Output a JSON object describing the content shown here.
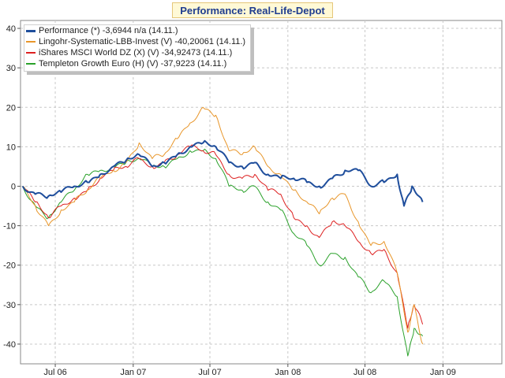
{
  "title": "Performance: Real-Life-Depot",
  "chart_data": {
    "type": "line",
    "title": "Performance: Real-Life-Depot",
    "ylim": [
      -45,
      42
    ],
    "yticks": [
      40,
      30,
      20,
      10,
      0,
      -10,
      -20,
      -30,
      -40
    ],
    "xlim": [
      "2006-04-10",
      "2009-05-20"
    ],
    "xticks": [
      {
        "date": "2006-07-01",
        "label": "Jul 06"
      },
      {
        "date": "2007-01-01",
        "label": "Jan 07"
      },
      {
        "date": "2007-07-01",
        "label": "Jul 07"
      },
      {
        "date": "2008-01-01",
        "label": "Jan 08"
      },
      {
        "date": "2008-07-01",
        "label": "Jul 08"
      },
      {
        "date": "2009-01-01",
        "label": "Jan 09"
      }
    ],
    "grid": true,
    "legend_position": "top-left",
    "series": [
      {
        "name": "Performance (*) -3,6944 n/a (14.11.)",
        "color": "#1f4e9c",
        "width": 2,
        "points": [
          [
            "2006-04-15",
            0
          ],
          [
            "2006-05-15",
            -2
          ],
          [
            "2006-06-15",
            -2.5
          ],
          [
            "2006-07-15",
            -1.5
          ],
          [
            "2006-08-15",
            0
          ],
          [
            "2006-09-15",
            1
          ],
          [
            "2006-10-15",
            3
          ],
          [
            "2006-11-15",
            5
          ],
          [
            "2006-12-15",
            6.5
          ],
          [
            "2007-01-15",
            8
          ],
          [
            "2007-02-15",
            5
          ],
          [
            "2007-03-15",
            6
          ],
          [
            "2007-04-15",
            8
          ],
          [
            "2007-05-15",
            10
          ],
          [
            "2007-06-15",
            11
          ],
          [
            "2007-07-15",
            10
          ],
          [
            "2007-08-15",
            6
          ],
          [
            "2007-09-15",
            5
          ],
          [
            "2007-10-15",
            6
          ],
          [
            "2007-11-15",
            3
          ],
          [
            "2007-12-15",
            2
          ],
          [
            "2008-01-15",
            2
          ],
          [
            "2008-02-15",
            1
          ],
          [
            "2008-03-15",
            0
          ],
          [
            "2008-04-15",
            2
          ],
          [
            "2008-05-15",
            4
          ],
          [
            "2008-06-15",
            4
          ],
          [
            "2008-07-15",
            0
          ],
          [
            "2008-08-15",
            1
          ],
          [
            "2008-09-15",
            3
          ],
          [
            "2008-10-01",
            -5
          ],
          [
            "2008-10-20",
            0
          ],
          [
            "2008-11-14",
            -4
          ]
        ]
      },
      {
        "name": "Lingohr-Systematic-LBB-Invest (V) -40,20061 (14.11.)",
        "color": "#e8962a",
        "width": 1,
        "points": [
          [
            "2006-04-15",
            0
          ],
          [
            "2006-05-15",
            -5
          ],
          [
            "2006-06-15",
            -10
          ],
          [
            "2006-07-15",
            -6
          ],
          [
            "2006-08-15",
            -4
          ],
          [
            "2006-09-15",
            -1
          ],
          [
            "2006-10-15",
            2
          ],
          [
            "2006-11-15",
            4
          ],
          [
            "2006-12-15",
            6
          ],
          [
            "2007-01-15",
            11
          ],
          [
            "2007-02-15",
            7
          ],
          [
            "2007-03-15",
            8
          ],
          [
            "2007-04-15",
            12
          ],
          [
            "2007-05-15",
            16
          ],
          [
            "2007-06-15",
            20
          ],
          [
            "2007-07-15",
            18
          ],
          [
            "2007-08-15",
            9
          ],
          [
            "2007-09-15",
            8
          ],
          [
            "2007-10-15",
            10
          ],
          [
            "2007-11-15",
            5
          ],
          [
            "2007-12-15",
            3
          ],
          [
            "2008-01-15",
            -1
          ],
          [
            "2008-02-15",
            -4
          ],
          [
            "2008-03-15",
            -7
          ],
          [
            "2008-04-15",
            -3
          ],
          [
            "2008-05-15",
            -2
          ],
          [
            "2008-06-15",
            -9
          ],
          [
            "2008-07-15",
            -15
          ],
          [
            "2008-08-15",
            -14
          ],
          [
            "2008-09-15",
            -22
          ],
          [
            "2008-10-10",
            -37
          ],
          [
            "2008-10-25",
            -30
          ],
          [
            "2008-11-14",
            -40
          ]
        ]
      },
      {
        "name": "iShares MSCI World DZ (X) (V) -34,92473 (14.11.)",
        "color": "#dd2020",
        "width": 1,
        "points": [
          [
            "2006-04-15",
            0
          ],
          [
            "2006-05-15",
            -4
          ],
          [
            "2006-06-15",
            -8
          ],
          [
            "2006-07-15",
            -5
          ],
          [
            "2006-08-15",
            -3
          ],
          [
            "2006-09-15",
            -1
          ],
          [
            "2006-10-15",
            2
          ],
          [
            "2006-11-15",
            4
          ],
          [
            "2006-12-15",
            5
          ],
          [
            "2007-01-15",
            7
          ],
          [
            "2007-02-15",
            5
          ],
          [
            "2007-03-15",
            6
          ],
          [
            "2007-04-15",
            8
          ],
          [
            "2007-05-15",
            10
          ],
          [
            "2007-06-15",
            9
          ],
          [
            "2007-07-15",
            8
          ],
          [
            "2007-08-15",
            3
          ],
          [
            "2007-09-15",
            2
          ],
          [
            "2007-10-15",
            3
          ],
          [
            "2007-11-15",
            -1
          ],
          [
            "2007-12-15",
            -2
          ],
          [
            "2008-01-15",
            -8
          ],
          [
            "2008-02-15",
            -10
          ],
          [
            "2008-03-15",
            -13
          ],
          [
            "2008-04-15",
            -9
          ],
          [
            "2008-05-15",
            -10
          ],
          [
            "2008-06-15",
            -14
          ],
          [
            "2008-07-15",
            -17
          ],
          [
            "2008-08-15",
            -16
          ],
          [
            "2008-09-15",
            -22
          ],
          [
            "2008-10-10",
            -36
          ],
          [
            "2008-10-25",
            -30
          ],
          [
            "2008-11-14",
            -35
          ]
        ]
      },
      {
        "name": "Templeton Growth Euro (H) (V) -37,9223 (14.11.)",
        "color": "#2aa12a",
        "width": 1,
        "points": [
          [
            "2006-04-15",
            0
          ],
          [
            "2006-05-15",
            -5
          ],
          [
            "2006-06-15",
            -8
          ],
          [
            "2006-07-15",
            -4
          ],
          [
            "2006-08-15",
            -1
          ],
          [
            "2006-09-15",
            3
          ],
          [
            "2006-10-15",
            4
          ],
          [
            "2006-11-15",
            5
          ],
          [
            "2006-12-15",
            6
          ],
          [
            "2007-01-15",
            7
          ],
          [
            "2007-02-15",
            5
          ],
          [
            "2007-03-15",
            5
          ],
          [
            "2007-04-15",
            7
          ],
          [
            "2007-05-15",
            9
          ],
          [
            "2007-06-15",
            9
          ],
          [
            "2007-07-15",
            7
          ],
          [
            "2007-08-15",
            0
          ],
          [
            "2007-09-15",
            -1
          ],
          [
            "2007-10-15",
            0
          ],
          [
            "2007-11-15",
            -4
          ],
          [
            "2007-12-15",
            -6
          ],
          [
            "2008-01-15",
            -12
          ],
          [
            "2008-02-15",
            -15
          ],
          [
            "2008-03-15",
            -20
          ],
          [
            "2008-04-15",
            -17
          ],
          [
            "2008-05-15",
            -18
          ],
          [
            "2008-06-15",
            -23
          ],
          [
            "2008-07-15",
            -27
          ],
          [
            "2008-08-15",
            -24
          ],
          [
            "2008-09-15",
            -28
          ],
          [
            "2008-10-10",
            -43
          ],
          [
            "2008-10-25",
            -36
          ],
          [
            "2008-11-14",
            -38
          ]
        ]
      }
    ]
  }
}
